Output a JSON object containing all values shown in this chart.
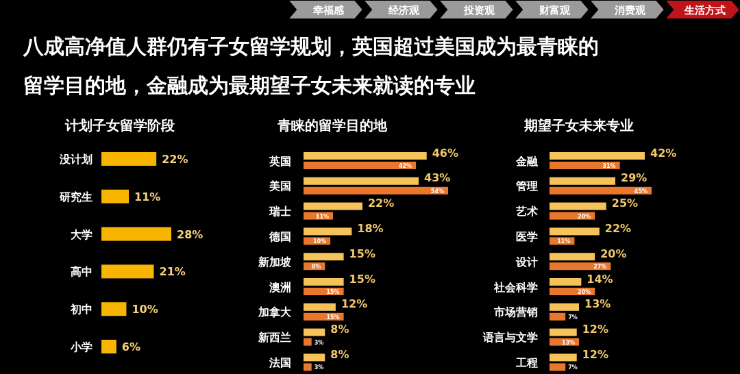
{
  "chart_data": [
    {
      "type": "bar",
      "orientation": "horizontal",
      "title": "计划子女留学阶段",
      "annotations": [
        "幸福感",
        "经济观",
        "投资观",
        "财富观",
        "消费观",
        "生活方式",
        "八成高净值人群仍有子女留学规划，英国超过美国成为最青睐的",
        "留学目的地，金融成为最期望子女未来就读的专业"
      ],
      "categories": [
        "没计划",
        "研究生",
        "大学",
        "高中",
        "初中",
        "小学"
      ],
      "series": [
        {
          "color": "#f7b500",
          "values": [
            22,
            11,
            28,
            21,
            10,
            6
          ],
          "value_labels": [
            "22%",
            "11%",
            "28%",
            "21%",
            "10%",
            "6%"
          ]
        }
      ]
    },
    {
      "type": "bar",
      "orientation": "horizontal",
      "title": "青睐的留学目的地",
      "categories": [
        "英国",
        "美国",
        "瑞士",
        "德国",
        "新加坡",
        "澳洲",
        "加拿大",
        "新西兰",
        "法国"
      ],
      "series": [
        {
          "color": "#f6c25a",
          "values": [
            46,
            43,
            22,
            18,
            15,
            15,
            12,
            8,
            8
          ],
          "value_labels": [
            "46%",
            "43%",
            "22%",
            "18%",
            "15%",
            "15%",
            "12%",
            "8%",
            "8%"
          ]
        },
        {
          "color": "#e9782c",
          "values": [
            42,
            54,
            11,
            10,
            8,
            15,
            15,
            3,
            3
          ],
          "value_labels": [
            "42%",
            "54%",
            "11%",
            "10%",
            "8%",
            "15%",
            "15%",
            "3%",
            "3%"
          ]
        }
      ]
    },
    {
      "type": "bar",
      "orientation": "horizontal",
      "title": "期望子女未来专业",
      "categories": [
        "金融",
        "管理",
        "艺术",
        "医学",
        "设计",
        "社会科学",
        "市场营销",
        "语言与文学",
        "工程"
      ],
      "series": [
        {
          "color": "#f6c25a",
          "values": [
            42,
            29,
            25,
            22,
            20,
            14,
            13,
            12,
            12
          ],
          "value_labels": [
            "42%",
            "29%",
            "25%",
            "22%",
            "20%",
            "14%",
            "13%",
            "12%",
            "12%"
          ]
        },
        {
          "color": "#e9782c",
          "values": [
            31,
            45,
            20,
            11,
            27,
            20,
            7,
            13,
            7
          ],
          "value_labels": [
            "31%",
            "45%",
            "20%",
            "11%",
            "27%",
            "20%",
            "7%",
            "13%",
            "7%"
          ]
        }
      ]
    }
  ]
}
